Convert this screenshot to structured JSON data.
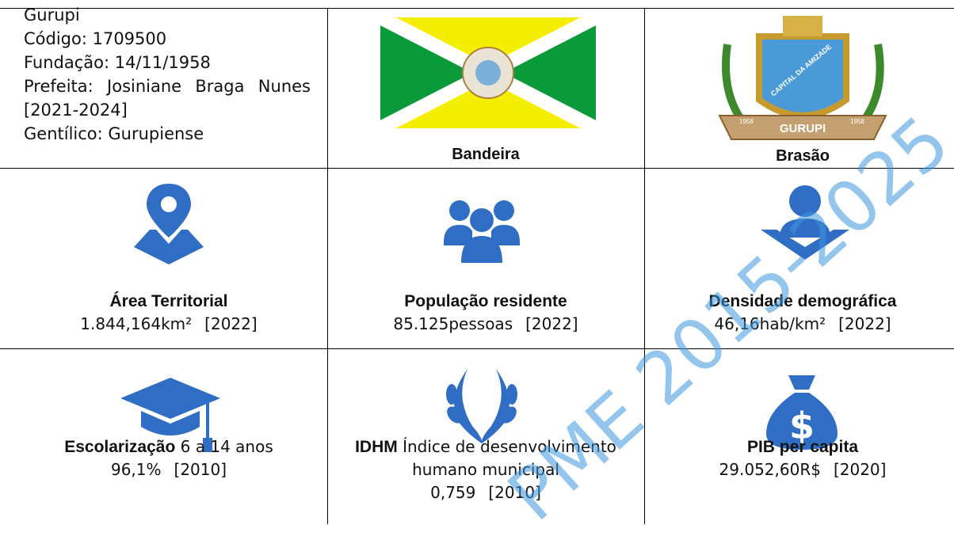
{
  "header": {
    "name": "Gurupi",
    "code": "Código: 1709500",
    "foundation": "Fundação: 14/11/1958",
    "mayor": "Prefeita: Josiniane Braga Nunes [2021-2024]",
    "demonym": "Gentílico: Gurupiense"
  },
  "flag": {
    "caption": "Bandeira"
  },
  "coat_of_arms": {
    "caption": "Brasão",
    "motto": "CAPITAL DA AMIZADE",
    "city": "GURUPI",
    "year_left": "1958",
    "year_right": "1958"
  },
  "indicators": [
    {
      "label": "Área Territorial",
      "value": "1.844,164km²",
      "year": "[2022]"
    },
    {
      "label": "População residente",
      "value": "85.125pessoas",
      "year": "[2022]"
    },
    {
      "label": "Densidade demográfica",
      "value": "46,16hab/km²",
      "year": "[2022]"
    },
    {
      "label": "Escolarização",
      "description": "6 a 14 anos",
      "value": "96,1%",
      "year": "[2010]"
    },
    {
      "label": "IDHM",
      "description": "Índice de desenvolvimento humano municipal",
      "value": "0,759",
      "year": "[2010]"
    },
    {
      "label": "PIB per capita",
      "value": "29.052,60R$",
      "year": "[2020]"
    }
  ],
  "watermark": "PME 2015-2025"
}
